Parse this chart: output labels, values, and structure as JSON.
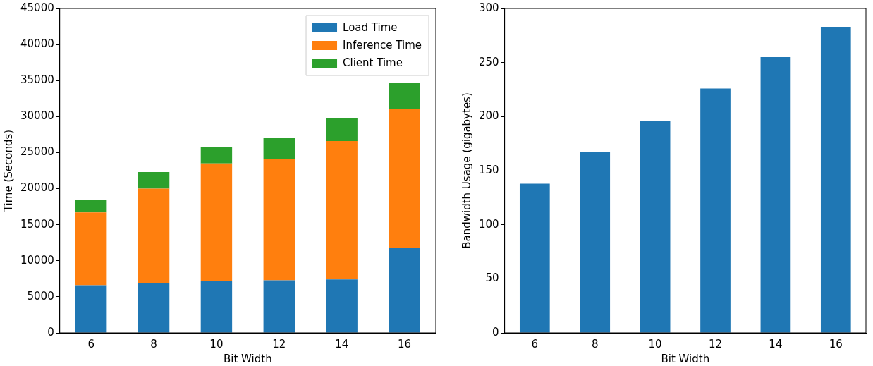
{
  "chart_data": [
    {
      "type": "bar",
      "stacked": true,
      "xlabel": "Bit Width",
      "ylabel": "Time (Seconds)",
      "categories": [
        "6",
        "8",
        "10",
        "12",
        "14",
        "16"
      ],
      "series": [
        {
          "name": "Load Time",
          "color": "#1f77b4",
          "values": [
            6600,
            6900,
            7200,
            7300,
            7400,
            11800
          ]
        },
        {
          "name": "Inference Time",
          "color": "#ff7f0e",
          "values": [
            10100,
            13100,
            16300,
            16800,
            19200,
            19300
          ]
        },
        {
          "name": "Client Time",
          "color": "#2ca02c",
          "values": [
            1700,
            2300,
            2300,
            2900,
            3200,
            3600
          ]
        }
      ],
      "ylim": [
        0,
        45000
      ],
      "yticks": [
        0,
        5000,
        10000,
        15000,
        20000,
        25000,
        30000,
        35000,
        40000,
        45000
      ],
      "grid": false,
      "legend": "top right"
    },
    {
      "type": "bar",
      "xlabel": "Bit Width",
      "ylabel": "Bandwidth Usage (gigabytes)",
      "categories": [
        "6",
        "8",
        "10",
        "12",
        "14",
        "16"
      ],
      "values": [
        138,
        167,
        196,
        226,
        255,
        283
      ],
      "color": "#1f77b4",
      "ylim": [
        0,
        300
      ],
      "yticks": [
        0,
        50,
        100,
        150,
        200,
        250,
        300
      ],
      "grid": false,
      "legend": false
    }
  ]
}
